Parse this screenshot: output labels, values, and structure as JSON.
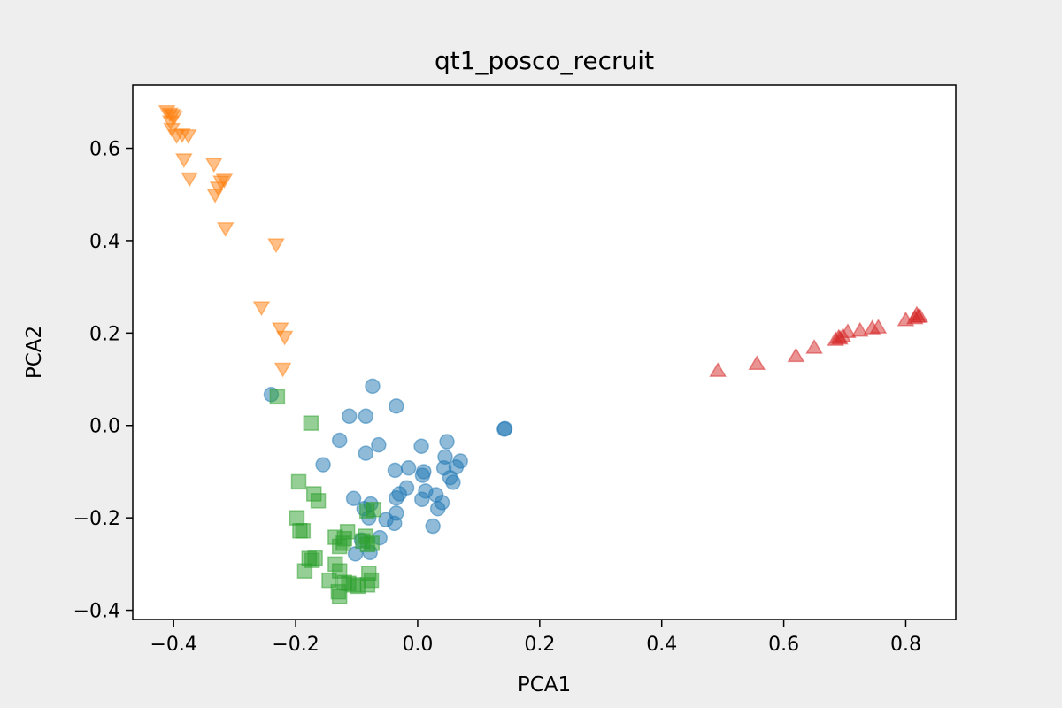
{
  "chart_data": {
    "type": "scatter",
    "title": "qt1_posco_recruit",
    "xlabel": "PCA1",
    "ylabel": "PCA2",
    "xlim": [
      -0.467,
      0.882
    ],
    "ylim": [
      -0.42,
      0.737
    ],
    "xticks": [
      -0.4,
      -0.2,
      0.0,
      0.2,
      0.4,
      0.6,
      0.8
    ],
    "xtick_labels": [
      "−0.4",
      "−0.2",
      "0.0",
      "0.2",
      "0.4",
      "0.6",
      "0.8"
    ],
    "yticks": [
      -0.4,
      -0.2,
      0.0,
      0.2,
      0.4,
      0.6
    ],
    "ytick_labels": [
      "−0.4",
      "−0.2",
      "0.0",
      "0.2",
      "0.4",
      "0.6"
    ],
    "grid": false,
    "legend": false,
    "series": [
      {
        "marker": "circle",
        "color": "#1f77b4",
        "points": [
          [
            -0.24,
            0.067
          ],
          [
            -0.074,
            0.085
          ],
          [
            -0.112,
            0.02
          ],
          [
            -0.085,
            0.02
          ],
          [
            -0.035,
            0.042
          ],
          [
            -0.128,
            -0.032
          ],
          [
            -0.064,
            -0.042
          ],
          [
            -0.085,
            -0.06
          ],
          [
            -0.155,
            -0.085
          ],
          [
            -0.037,
            -0.097
          ],
          [
            -0.015,
            -0.092
          ],
          [
            0.006,
            -0.045
          ],
          [
            0.048,
            -0.035
          ],
          [
            0.045,
            -0.068
          ],
          [
            0.07,
            -0.077
          ],
          [
            0.063,
            -0.09
          ],
          [
            0.043,
            -0.092
          ],
          [
            0.01,
            -0.1
          ],
          [
            0.008,
            -0.108
          ],
          [
            0.053,
            -0.113
          ],
          [
            0.058,
            -0.123
          ],
          [
            -0.018,
            -0.135
          ],
          [
            0.013,
            -0.142
          ],
          [
            0.03,
            -0.15
          ],
          [
            -0.03,
            -0.148
          ],
          [
            -0.035,
            -0.157
          ],
          [
            0.007,
            -0.16
          ],
          [
            0.04,
            -0.167
          ],
          [
            0.033,
            -0.18
          ],
          [
            -0.105,
            -0.158
          ],
          [
            -0.077,
            -0.17
          ],
          [
            -0.088,
            -0.18
          ],
          [
            -0.08,
            -0.2
          ],
          [
            -0.052,
            -0.204
          ],
          [
            -0.038,
            -0.212
          ],
          [
            -0.035,
            -0.19
          ],
          [
            0.025,
            -0.218
          ],
          [
            -0.062,
            -0.243
          ],
          [
            -0.092,
            -0.248
          ],
          [
            -0.078,
            -0.275
          ],
          [
            -0.102,
            -0.278
          ],
          [
            0.143,
            -0.007
          ],
          [
            0.142,
            -0.008
          ]
        ]
      },
      {
        "marker": "triangle-down",
        "color": "#ff7f0e",
        "points": [
          [
            -0.411,
            0.68
          ],
          [
            -0.406,
            0.675
          ],
          [
            -0.402,
            0.672
          ],
          [
            -0.399,
            0.668
          ],
          [
            -0.405,
            0.658
          ],
          [
            -0.403,
            0.642
          ],
          [
            -0.395,
            0.628
          ],
          [
            -0.386,
            0.63
          ],
          [
            -0.376,
            0.628
          ],
          [
            -0.383,
            0.576
          ],
          [
            -0.374,
            0.535
          ],
          [
            -0.334,
            0.566
          ],
          [
            -0.332,
            0.5
          ],
          [
            -0.327,
            0.515
          ],
          [
            -0.322,
            0.528
          ],
          [
            -0.317,
            0.532
          ],
          [
            -0.315,
            0.427
          ],
          [
            -0.232,
            0.392
          ],
          [
            -0.256,
            0.256
          ],
          [
            -0.225,
            0.21
          ],
          [
            -0.218,
            0.192
          ],
          [
            -0.221,
            0.123
          ]
        ]
      },
      {
        "marker": "square",
        "color": "#2ca02c",
        "points": [
          [
            -0.23,
            0.062
          ],
          [
            -0.175,
            0.005
          ],
          [
            -0.195,
            -0.122
          ],
          [
            -0.17,
            -0.148
          ],
          [
            -0.163,
            -0.163
          ],
          [
            -0.198,
            -0.2
          ],
          [
            -0.193,
            -0.228
          ],
          [
            -0.188,
            -0.228
          ],
          [
            -0.135,
            -0.242
          ],
          [
            -0.12,
            -0.245
          ],
          [
            -0.115,
            -0.23
          ],
          [
            -0.083,
            -0.185
          ],
          [
            -0.072,
            -0.182
          ],
          [
            -0.085,
            -0.24
          ],
          [
            -0.09,
            -0.25
          ],
          [
            -0.082,
            -0.258
          ],
          [
            -0.075,
            -0.255
          ],
          [
            -0.128,
            -0.262
          ],
          [
            -0.122,
            -0.255
          ],
          [
            -0.178,
            -0.288
          ],
          [
            -0.173,
            -0.292
          ],
          [
            -0.168,
            -0.287
          ],
          [
            -0.185,
            -0.315
          ],
          [
            -0.135,
            -0.3
          ],
          [
            -0.128,
            -0.315
          ],
          [
            -0.145,
            -0.335
          ],
          [
            -0.12,
            -0.34
          ],
          [
            -0.113,
            -0.342
          ],
          [
            -0.105,
            -0.345
          ],
          [
            -0.098,
            -0.348
          ],
          [
            -0.082,
            -0.345
          ],
          [
            -0.076,
            -0.335
          ],
          [
            -0.08,
            -0.32
          ],
          [
            -0.13,
            -0.36
          ],
          [
            -0.128,
            -0.37
          ]
        ]
      },
      {
        "marker": "triangle-up",
        "color": "#d62728",
        "points": [
          [
            0.492,
            0.118
          ],
          [
            0.556,
            0.133
          ],
          [
            0.62,
            0.15
          ],
          [
            0.65,
            0.168
          ],
          [
            0.685,
            0.185
          ],
          [
            0.69,
            0.19
          ],
          [
            0.692,
            0.188
          ],
          [
            0.697,
            0.193
          ],
          [
            0.705,
            0.202
          ],
          [
            0.725,
            0.205
          ],
          [
            0.745,
            0.21
          ],
          [
            0.755,
            0.212
          ],
          [
            0.8,
            0.228
          ],
          [
            0.815,
            0.232
          ],
          [
            0.82,
            0.235
          ],
          [
            0.818,
            0.24
          ],
          [
            0.823,
            0.236
          ]
        ]
      }
    ]
  }
}
